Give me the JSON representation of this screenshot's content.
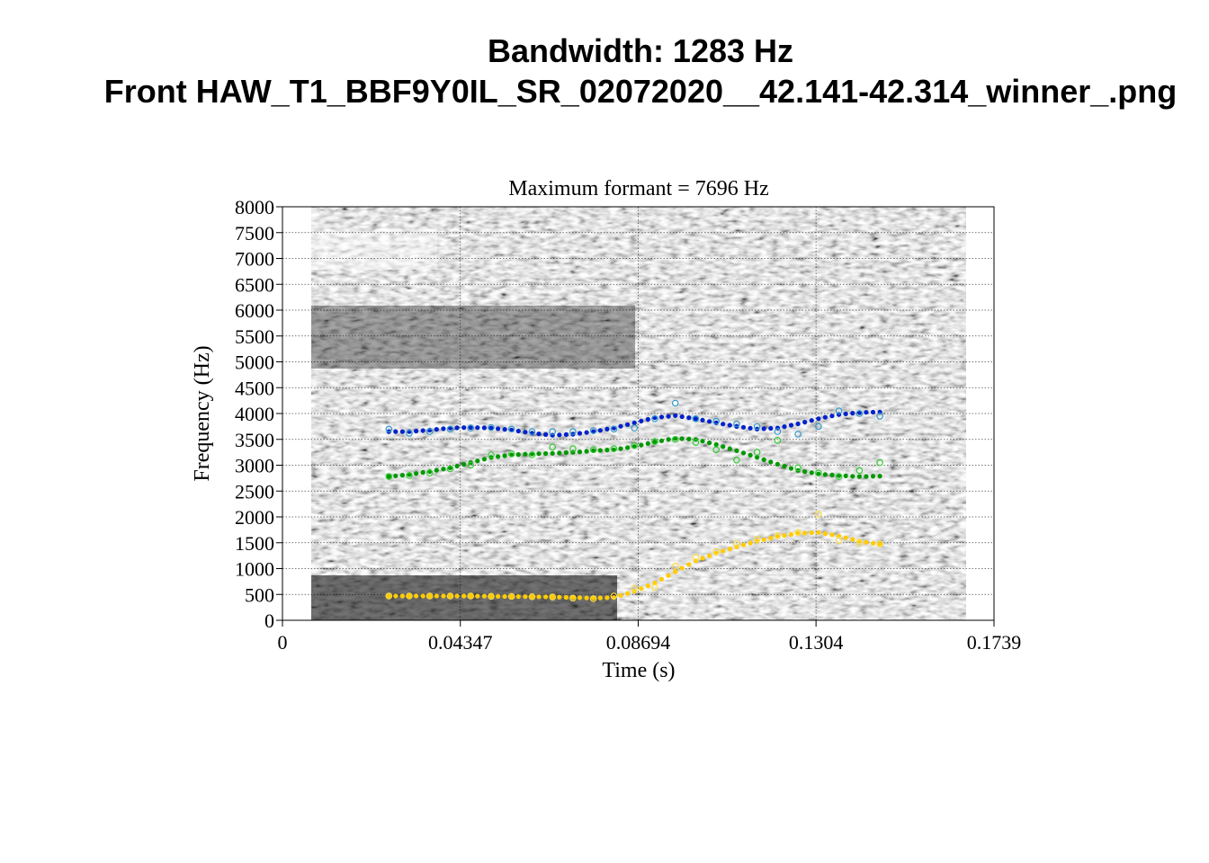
{
  "header": {
    "title_line1": "Bandwidth: 1283 Hz",
    "title_line2": "Front HAW_T1_BBF9Y0IL_SR_02072020__42.141-42.314_winner_.png"
  },
  "chart_data": {
    "type": "scatter",
    "title": "Maximum formant  =  7696 Hz",
    "xlabel": "Time (s)",
    "ylabel": "Frequency (Hz)",
    "xlim": [
      0,
      0.1739
    ],
    "ylim": [
      0,
      8000
    ],
    "x_ticks": [
      0,
      0.04347,
      0.08694,
      0.1304,
      0.1739
    ],
    "x_tick_labels": [
      "0",
      "0.04347",
      "0.08694",
      "0.1304",
      "0.1739"
    ],
    "y_ticks": [
      0,
      500,
      1000,
      1500,
      2000,
      2500,
      3000,
      3500,
      4000,
      4500,
      5000,
      5500,
      6000,
      6500,
      7000,
      7500,
      8000
    ],
    "y_tick_labels": [
      "0",
      "500",
      "1000",
      "1500",
      "2000",
      "2500",
      "3000",
      "3500",
      "4000",
      "4500",
      "5000",
      "5500",
      "6000",
      "6500",
      "7000",
      "7500",
      "8000"
    ],
    "grid": true,
    "background": "grayscale spectrogram",
    "series": [
      {
        "color": "#ffcc00",
        "style": "filled",
        "x": [
          0.026,
          0.031,
          0.036,
          0.041,
          0.046,
          0.051,
          0.056,
          0.061,
          0.066,
          0.071,
          0.076,
          0.081,
          0.086,
          0.091,
          0.096,
          0.101,
          0.106,
          0.111,
          0.116,
          0.121,
          0.126,
          0.131,
          0.136,
          0.141,
          0.146
        ],
        "y": [
          470,
          470,
          470,
          470,
          470,
          465,
          460,
          455,
          450,
          440,
          430,
          440,
          560,
          720,
          940,
          1150,
          1300,
          1420,
          1530,
          1620,
          1680,
          1700,
          1630,
          1530,
          1470
        ]
      },
      {
        "color": "#ffdd44",
        "style": "open",
        "x": [
          0.026,
          0.031,
          0.036,
          0.041,
          0.046,
          0.051,
          0.056,
          0.061,
          0.066,
          0.071,
          0.076,
          0.081,
          0.086,
          0.091,
          0.096,
          0.101,
          0.106,
          0.111,
          0.116,
          0.121,
          0.126,
          0.131,
          0.136,
          0.141,
          0.146
        ],
        "y": [
          470,
          470,
          470,
          470,
          470,
          465,
          460,
          455,
          450,
          430,
          420,
          470,
          620,
          640,
          1050,
          1220,
          1330,
          1480,
          1570,
          1640,
          1700,
          2050,
          1550,
          1500,
          1480
        ]
      },
      {
        "color": "#009900",
        "style": "filled",
        "x": [
          0.026,
          0.031,
          0.036,
          0.041,
          0.046,
          0.051,
          0.056,
          0.061,
          0.066,
          0.071,
          0.076,
          0.081,
          0.086,
          0.091,
          0.096,
          0.101,
          0.106,
          0.111,
          0.116,
          0.121,
          0.126,
          0.131,
          0.136,
          0.141,
          0.146
        ],
        "y": [
          2780,
          2820,
          2880,
          2950,
          3050,
          3150,
          3200,
          3220,
          3230,
          3250,
          3280,
          3300,
          3360,
          3450,
          3520,
          3500,
          3400,
          3280,
          3150,
          3020,
          2900,
          2830,
          2800,
          2780,
          2790
        ]
      },
      {
        "color": "#33cc33",
        "style": "open",
        "x": [
          0.026,
          0.031,
          0.036,
          0.041,
          0.046,
          0.051,
          0.056,
          0.061,
          0.066,
          0.071,
          0.076,
          0.081,
          0.086,
          0.091,
          0.096,
          0.101,
          0.106,
          0.111,
          0.116,
          0.121,
          0.126,
          0.131,
          0.136,
          0.141,
          0.146
        ],
        "y": [
          2780,
          2800,
          2850,
          2930,
          3000,
          3200,
          3220,
          3200,
          3350,
          3320,
          3300,
          3320,
          3380,
          3460,
          3500,
          3440,
          3300,
          3100,
          3250,
          3480,
          2950,
          2850,
          2780,
          2900,
          3050
        ]
      },
      {
        "color": "#0022cc",
        "style": "filled",
        "x": [
          0.026,
          0.031,
          0.036,
          0.041,
          0.046,
          0.051,
          0.056,
          0.061,
          0.066,
          0.071,
          0.076,
          0.081,
          0.086,
          0.091,
          0.096,
          0.101,
          0.106,
          0.111,
          0.116,
          0.121,
          0.126,
          0.131,
          0.136,
          0.141,
          0.146
        ],
        "y": [
          3650,
          3650,
          3680,
          3720,
          3730,
          3720,
          3680,
          3620,
          3580,
          3600,
          3650,
          3720,
          3820,
          3920,
          3960,
          3900,
          3820,
          3750,
          3700,
          3720,
          3800,
          3900,
          3980,
          4020,
          4030
        ]
      },
      {
        "color": "#3399cc",
        "style": "open",
        "x": [
          0.026,
          0.031,
          0.036,
          0.041,
          0.046,
          0.051,
          0.056,
          0.061,
          0.066,
          0.071,
          0.076,
          0.081,
          0.086,
          0.091,
          0.096,
          0.101,
          0.106,
          0.111,
          0.116,
          0.121,
          0.126,
          0.131,
          0.136,
          0.141,
          0.146
        ],
        "y": [
          3700,
          3620,
          3650,
          3700,
          3720,
          3730,
          3700,
          3650,
          3650,
          3650,
          3670,
          3700,
          3720,
          3900,
          4200,
          3900,
          3850,
          3800,
          3750,
          3650,
          3600,
          3750,
          4050,
          4000,
          3950
        ]
      }
    ]
  }
}
